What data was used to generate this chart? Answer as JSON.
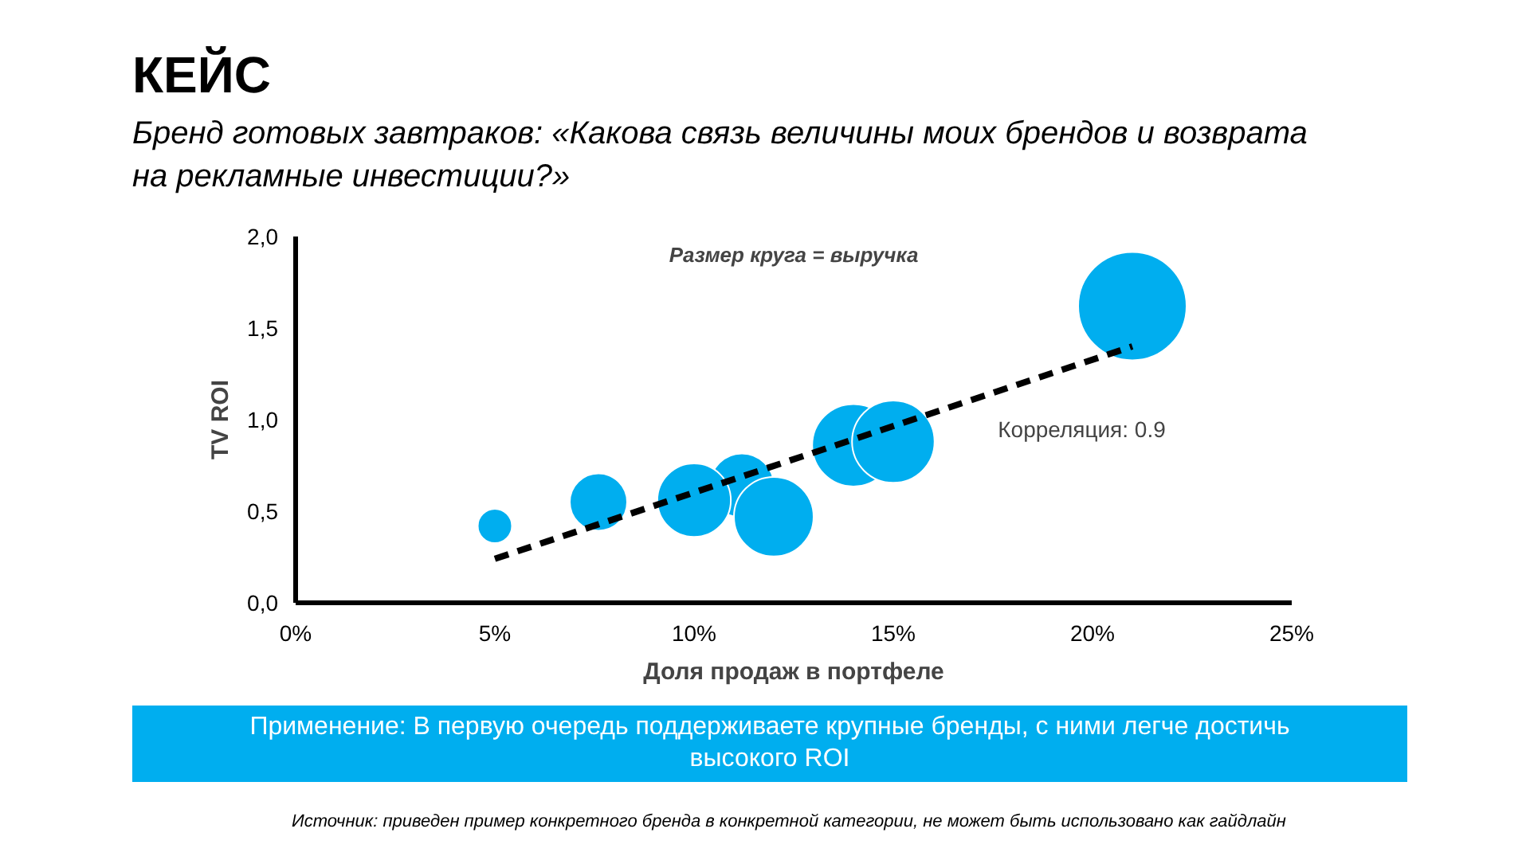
{
  "chart_data": {
    "type": "bubble",
    "title": "КЕЙС",
    "subtitle": "Бренд готовых завтраков: «Какова связь величины моих брендов и возврата на рекламные инвестиции?»",
    "xlabel": "Доля продаж в портфеле",
    "ylabel": "TV ROI",
    "xlim": [
      0,
      25
    ],
    "xticks": [
      {
        "value": 0,
        "label": "0%"
      },
      {
        "value": 5,
        "label": "5%"
      },
      {
        "value": 10,
        "label": "10%"
      },
      {
        "value": 15,
        "label": "15%"
      },
      {
        "value": 20,
        "label": "20%"
      },
      {
        "value": 25,
        "label": "25%"
      }
    ],
    "ylim": [
      0,
      2
    ],
    "yticks": [
      {
        "value": 0,
        "label": "0,0"
      },
      {
        "value": 0.5,
        "label": "0,5"
      },
      {
        "value": 1,
        "label": "1,0"
      },
      {
        "value": 1.5,
        "label": "1,5"
      },
      {
        "value": 2,
        "label": "2,0"
      }
    ],
    "grid": false,
    "series": [
      {
        "color": "#00aeef",
        "x": [
          5.0,
          7.6,
          11.2,
          10.0,
          12.0,
          14.0,
          15.0,
          21.0
        ],
        "values": [
          0.42,
          0.55,
          0.64,
          0.56,
          0.47,
          0.86,
          0.88,
          1.62
        ],
        "sizes": [
          0.1,
          0.28,
          0.35,
          0.46,
          0.54,
          0.58,
          0.58,
          1
        ]
      },
      {
        "type": "line",
        "color": "#000000",
        "line_style": "dashed",
        "x": [
          5.0,
          21.0
        ],
        "values": [
          0.24,
          1.4
        ]
      }
    ],
    "annotations": [
      "Размер круга = выручка",
      "Корреляция: 0.9",
      "Применение: В первую очередь поддерживаете крупные бренды, с ними легче достичь высокого ROI",
      "Источник: приведен пример конкретного бренда в конкретной категории, не может быть использовано как гайдлайн"
    ]
  }
}
